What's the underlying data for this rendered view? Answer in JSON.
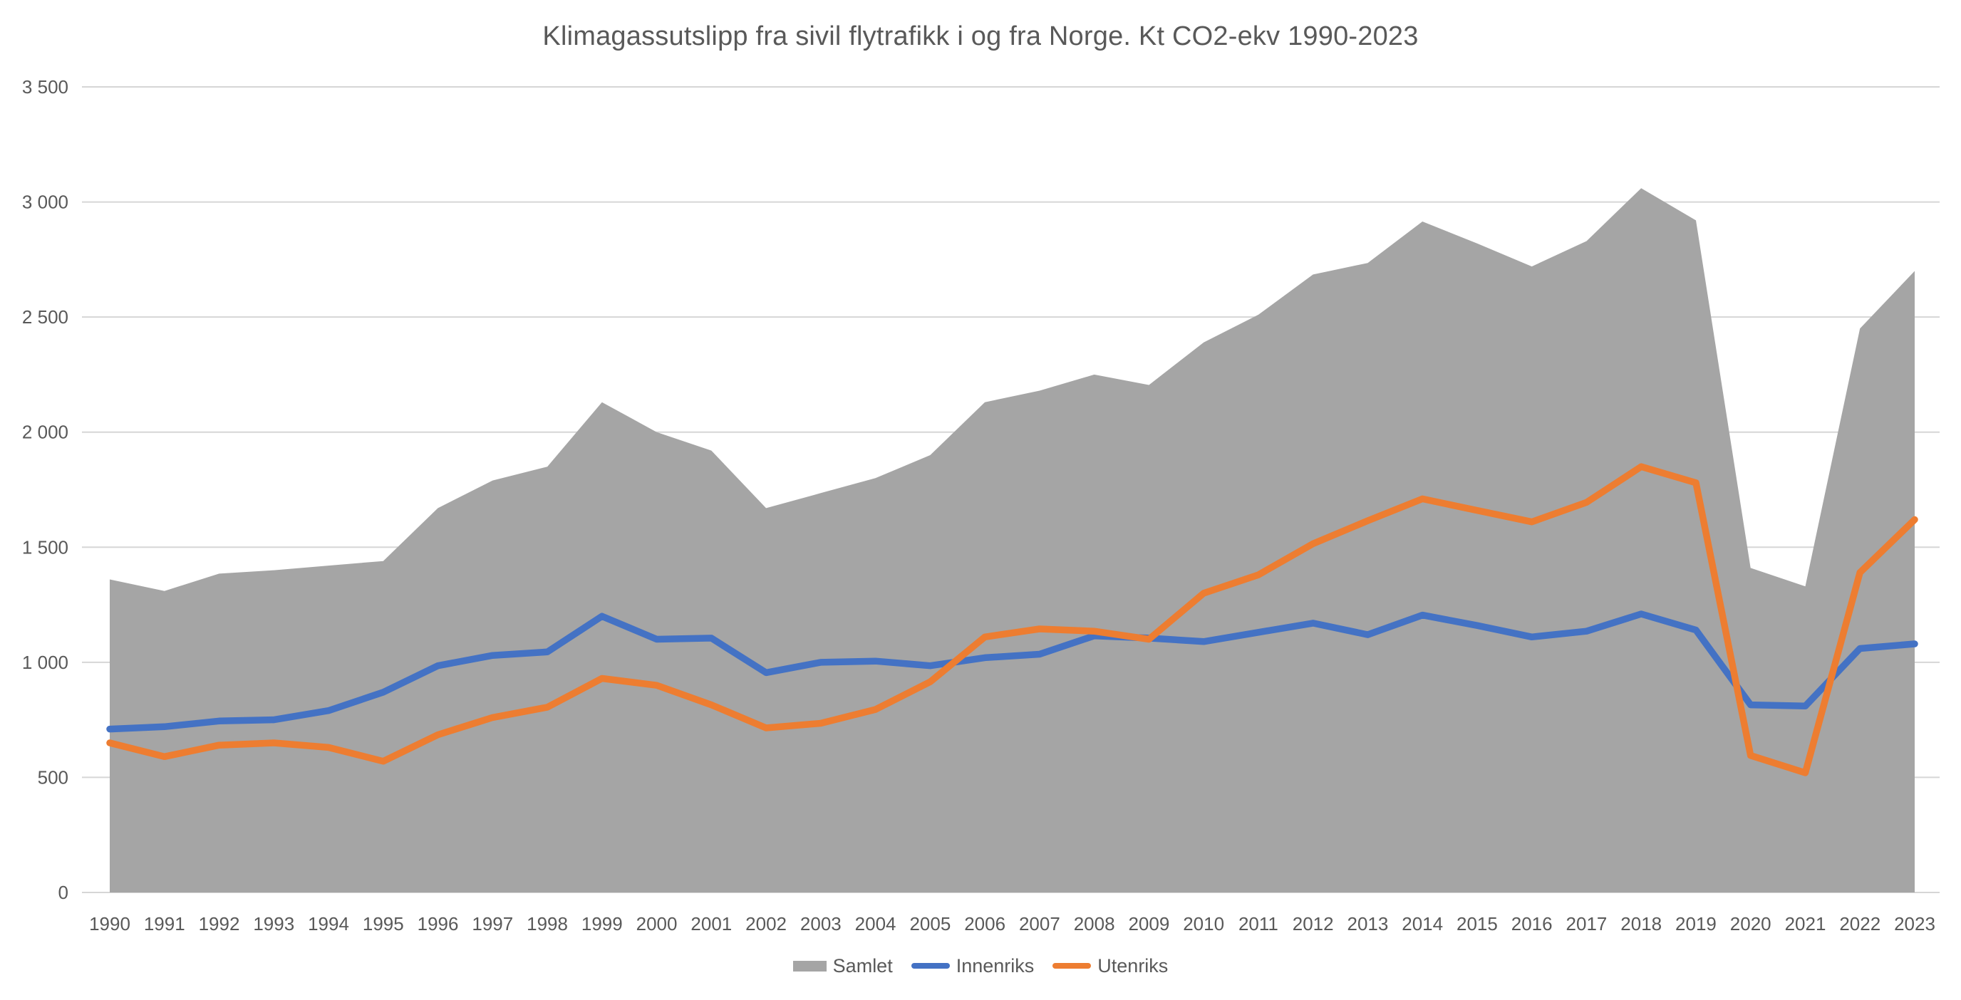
{
  "page": {
    "background": "#FFFFFF"
  },
  "chart_data": {
    "type": "area",
    "title": "Klimagassutslipp fra sivil flytrafikk i og fra Norge. Kt CO2-ekv 1990-2023",
    "x": [
      1990,
      1991,
      1992,
      1993,
      1994,
      1995,
      1996,
      1997,
      1998,
      1999,
      2000,
      2001,
      2002,
      2003,
      2004,
      2005,
      2006,
      2007,
      2008,
      2009,
      2010,
      2011,
      2012,
      2013,
      2014,
      2015,
      2016,
      2017,
      2018,
      2019,
      2020,
      2021,
      2022,
      2023
    ],
    "series": [
      {
        "name": "Samlet",
        "type": "area",
        "color": "#A5A5A5",
        "values": [
          1360,
          1310,
          1385,
          1400,
          1420,
          1440,
          1670,
          1790,
          1850,
          2130,
          2000,
          1920,
          1670,
          1735,
          1800,
          1900,
          2130,
          2180,
          2250,
          2205,
          2390,
          2510,
          2685,
          2735,
          2915,
          2820,
          2720,
          2830,
          3060,
          2920,
          1410,
          1330,
          2450,
          2700
        ]
      },
      {
        "name": "Innenriks",
        "type": "line",
        "color": "#4472C4",
        "values": [
          710,
          720,
          745,
          750,
          790,
          870,
          985,
          1030,
          1045,
          1200,
          1100,
          1105,
          955,
          1000,
          1005,
          985,
          1020,
          1035,
          1115,
          1105,
          1090,
          1130,
          1170,
          1120,
          1205,
          1160,
          1110,
          1135,
          1210,
          1140,
          815,
          810,
          1060,
          1080
        ]
      },
      {
        "name": "Utenriks",
        "type": "line",
        "color": "#ED7D31",
        "values": [
          650,
          590,
          640,
          650,
          630,
          570,
          685,
          760,
          805,
          930,
          900,
          815,
          715,
          735,
          795,
          915,
          1110,
          1145,
          1135,
          1100,
          1300,
          1380,
          1515,
          1615,
          1710,
          1660,
          1610,
          1695,
          1850,
          1780,
          595,
          520,
          1390,
          1620
        ]
      }
    ],
    "ylim": [
      0,
      3500
    ],
    "y_ticks": [
      0,
      500,
      1000,
      1500,
      2000,
      2500,
      3000,
      3500
    ],
    "y_tick_labels": [
      "0",
      "500",
      "1 000",
      "1 500",
      "2 000",
      "2 500",
      "3 000",
      "3 500"
    ],
    "grid": true,
    "legend_position": "bottom",
    "axis_label_color": "#595959",
    "gridline_color": "#D6D6D6"
  }
}
